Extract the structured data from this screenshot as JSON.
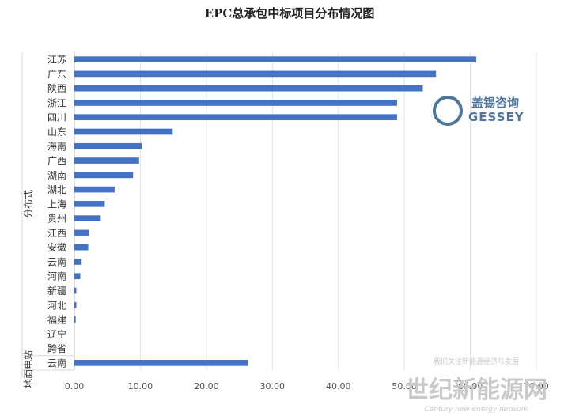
{
  "chart_data": {
    "type": "bar",
    "orientation": "horizontal",
    "title": "EPC总承包中标项目分布情况图",
    "groups": [
      {
        "name": "分布式",
        "categories": [
          "江苏",
          "广东",
          "陕西",
          "浙江",
          "四川",
          "山东",
          "海南",
          "广西",
          "湖南",
          "湖北",
          "上海",
          "贵州",
          "江西",
          "安徽",
          "云南",
          "河南",
          "新疆",
          "河北",
          "福建",
          "辽宁",
          "跨省"
        ],
        "values": [
          60.9,
          54.8,
          52.8,
          48.9,
          48.9,
          14.9,
          10.2,
          9.8,
          8.9,
          6.1,
          4.6,
          4.0,
          2.2,
          2.1,
          1.1,
          0.9,
          0.3,
          0.3,
          0.2,
          0,
          0
        ]
      },
      {
        "name": "地面电站",
        "categories": [
          "云南"
        ],
        "values": [
          26.3
        ]
      }
    ],
    "x_ticks": [
      "0.00",
      "10.00",
      "20.00",
      "30.00",
      "40.00",
      "50.00",
      "60.00",
      "70.00"
    ],
    "xlim": [
      0,
      70
    ],
    "grid": true,
    "bar_color": "#4472c4"
  },
  "watermarks": {
    "gessey_cn": "盖锡咨询",
    "gessey_en": "GESSEY",
    "network_cn": "世纪新能源网",
    "network_en": "Century new energy network",
    "network_caption": "我们关注新能源经济与发展"
  }
}
